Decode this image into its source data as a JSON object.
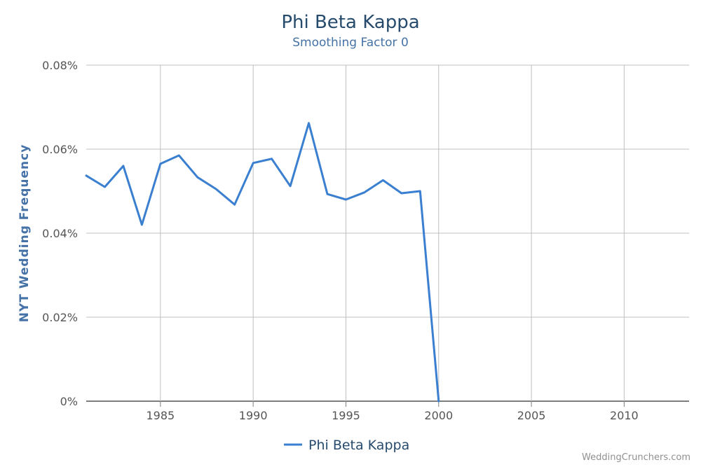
{
  "chart_data": {
    "type": "line",
    "title": "Phi Beta Kappa",
    "subtitle": "Smoothing Factor 0",
    "xlabel": "",
    "ylabel": "NYT Wedding Frequency",
    "xlim": [
      1981,
      2013.5
    ],
    "ylim": [
      0,
      0.08
    ],
    "x_ticks": [
      1985,
      1990,
      1995,
      2000,
      2005,
      2010
    ],
    "y_ticks": [
      0,
      0.02,
      0.04,
      0.06,
      0.08
    ],
    "y_tick_labels": [
      "0%",
      "0.02%",
      "0.04%",
      "0.06%",
      "0.08%"
    ],
    "grid": true,
    "legend_position": "bottom-center",
    "series": [
      {
        "name": "Phi Beta Kappa",
        "color": "#3a7fd0",
        "x": [
          1981,
          1982,
          1983,
          1984,
          1985,
          1986,
          1987,
          1988,
          1989,
          1990,
          1991,
          1992,
          1993,
          1994,
          1995,
          1996,
          1997,
          1998,
          1999,
          2000
        ],
        "values": [
          0.0537,
          0.051,
          0.056,
          0.042,
          0.0565,
          0.0585,
          0.0533,
          0.0505,
          0.0468,
          0.0567,
          0.0577,
          0.0512,
          0.0662,
          0.0493,
          0.048,
          0.0497,
          0.0526,
          0.0495,
          0.05,
          0.0
        ]
      }
    ]
  },
  "credit": "WeddingCrunchers.com"
}
